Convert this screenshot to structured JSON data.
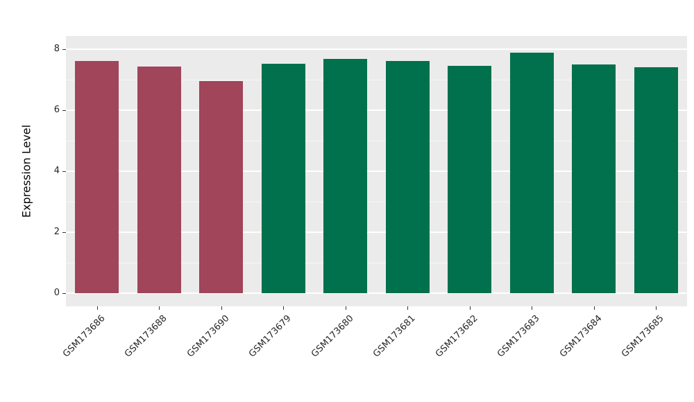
{
  "chart_data": {
    "type": "bar",
    "title": "",
    "xlabel": "",
    "ylabel": "Expression Level",
    "categories": [
      "GSM173686",
      "GSM173688",
      "GSM173690",
      "GSM173679",
      "GSM173680",
      "GSM173681",
      "GSM173682",
      "GSM173683",
      "GSM173684",
      "GSM173685"
    ],
    "values": [
      7.6,
      7.42,
      6.95,
      7.52,
      7.68,
      7.6,
      7.45,
      7.88,
      7.48,
      7.4
    ],
    "bar_colors": [
      "#A0455A",
      "#A0455A",
      "#A0455A",
      "#00714C",
      "#00714C",
      "#00714C",
      "#00714C",
      "#00714C",
      "#00714C",
      "#00714C"
    ],
    "group_colors": {
      "group1": "#A0455A",
      "group2": "#00714C"
    },
    "yticks": [
      0,
      2,
      4,
      6,
      8
    ],
    "yticks_minor": [
      1,
      3,
      5,
      7
    ],
    "ylim": [
      -0.42,
      8.42
    ],
    "grid": "on",
    "legend": "none",
    "plot_background": "#EBEBEB"
  }
}
